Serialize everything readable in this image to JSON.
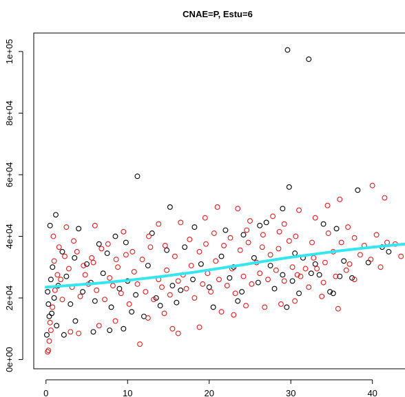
{
  "chart_data": {
    "type": "scatter",
    "title": "CNAE=P, Estu=6",
    "xlabel": "",
    "ylabel": "",
    "xlim": [
      -1.5,
      44.5
    ],
    "ylim": [
      -3000,
      106000
    ],
    "x_ticks": [
      0,
      10,
      20,
      30,
      40
    ],
    "x_tick_labels": [
      "0",
      "10",
      "20",
      "30",
      "40"
    ],
    "y_ticks": [
      0,
      20000,
      40000,
      60000,
      80000,
      100000
    ],
    "y_tick_labels": [
      "0e+00",
      "2e+04",
      "4e+04",
      "6e+04",
      "8e+04",
      "1e+05"
    ],
    "grid": false,
    "colors": {
      "group_a": "#000000",
      "group_b": "#e31a1c",
      "smooth": "#33e6f0"
    },
    "series": [
      {
        "marker": "open-circle",
        "color": "#000000",
        "points": [
          [
            29.6,
            100500
          ],
          [
            32.2,
            97500
          ],
          [
            11.2,
            59500
          ],
          [
            29.8,
            56000
          ],
          [
            15.2,
            49500
          ],
          [
            0.5,
            43500
          ],
          [
            1.2,
            47000
          ],
          [
            38.2,
            55000
          ],
          [
            26.2,
            43500
          ],
          [
            27.0,
            44500
          ],
          [
            29.0,
            49000
          ],
          [
            34.0,
            44000
          ],
          [
            35.6,
            42500
          ],
          [
            4.0,
            42500
          ],
          [
            6.5,
            37500
          ],
          [
            8.5,
            40000
          ],
          [
            9.8,
            38000
          ],
          [
            13.0,
            41000
          ],
          [
            17.0,
            36500
          ],
          [
            18.2,
            43000
          ],
          [
            22.0,
            42000
          ],
          [
            24.2,
            40500
          ],
          [
            2.0,
            35000
          ],
          [
            3.5,
            33000
          ],
          [
            5.0,
            31000
          ],
          [
            7.5,
            34500
          ],
          [
            12.5,
            30500
          ],
          [
            14.8,
            35500
          ],
          [
            19.0,
            31000
          ],
          [
            21.5,
            33500
          ],
          [
            23.0,
            30000
          ],
          [
            25.5,
            33000
          ],
          [
            27.5,
            30500
          ],
          [
            30.5,
            34500
          ],
          [
            31.5,
            33000
          ],
          [
            33.0,
            31000
          ],
          [
            36.5,
            32000
          ],
          [
            39.5,
            31500
          ],
          [
            41.2,
            36500
          ],
          [
            42.0,
            35000
          ],
          [
            0.2,
            22000
          ],
          [
            0.3,
            18000
          ],
          [
            0.4,
            14000
          ],
          [
            0.6,
            26000
          ],
          [
            0.8,
            30000
          ],
          [
            1.0,
            20000
          ],
          [
            1.5,
            24000
          ],
          [
            2.5,
            27000
          ],
          [
            3.0,
            18000
          ],
          [
            4.5,
            22000
          ],
          [
            5.5,
            25000
          ],
          [
            6.0,
            19000
          ],
          [
            7.0,
            28000
          ],
          [
            8.0,
            17000
          ],
          [
            9.0,
            23000
          ],
          [
            10.0,
            25500
          ],
          [
            11.0,
            21000
          ],
          [
            13.5,
            20000
          ],
          [
            15.5,
            24000
          ],
          [
            16.5,
            22500
          ],
          [
            18.0,
            26000
          ],
          [
            20.0,
            23500
          ],
          [
            22.5,
            26500
          ],
          [
            24.0,
            22000
          ],
          [
            26.0,
            25000
          ],
          [
            28.0,
            23000
          ],
          [
            29.5,
            17000
          ],
          [
            30.2,
            25500
          ],
          [
            31.0,
            21500
          ],
          [
            33.5,
            27500
          ],
          [
            34.8,
            22000
          ],
          [
            36.0,
            27000
          ],
          [
            37.5,
            26500
          ],
          [
            35.2,
            21500
          ],
          [
            5.8,
            9000
          ],
          [
            7.8,
            9500
          ],
          [
            9.5,
            10000
          ],
          [
            1.3,
            11000
          ],
          [
            2.2,
            8000
          ],
          [
            3.6,
            12500
          ],
          [
            10.5,
            15500
          ],
          [
            12.0,
            14000
          ],
          [
            14.0,
            17500
          ],
          [
            16.0,
            18500
          ],
          [
            20.5,
            17000
          ],
          [
            23.5,
            19000
          ],
          [
            29.0,
            27500
          ],
          [
            32.5,
            28000
          ],
          [
            0.1,
            8000
          ],
          [
            0.7,
            15000
          ]
        ]
      },
      {
        "marker": "open-circle",
        "color": "#e31a1c",
        "points": [
          [
            40.0,
            56500
          ],
          [
            41.5,
            52500
          ],
          [
            36.0,
            52000
          ],
          [
            34.5,
            50000
          ],
          [
            21.0,
            49500
          ],
          [
            23.5,
            49000
          ],
          [
            27.8,
            46500
          ],
          [
            33.0,
            46000
          ],
          [
            31.0,
            48500
          ],
          [
            19.5,
            46000
          ],
          [
            2.5,
            43000
          ],
          [
            6.0,
            43500
          ],
          [
            9.5,
            41500
          ],
          [
            13.8,
            44000
          ],
          [
            16.5,
            44500
          ],
          [
            25.0,
            45000
          ],
          [
            29.2,
            44000
          ],
          [
            37.0,
            43000
          ],
          [
            40.5,
            40500
          ],
          [
            43.5,
            33500
          ],
          [
            41.8,
            38000
          ],
          [
            39.0,
            37000
          ],
          [
            38.5,
            34000
          ],
          [
            37.2,
            31000
          ],
          [
            36.8,
            29000
          ],
          [
            35.5,
            27000
          ],
          [
            34.0,
            25000
          ],
          [
            32.8,
            33000
          ],
          [
            31.8,
            29500
          ],
          [
            30.8,
            27500
          ],
          [
            29.8,
            38500
          ],
          [
            28.5,
            36000
          ],
          [
            27.5,
            34000
          ],
          [
            26.5,
            36500
          ],
          [
            25.8,
            31500
          ],
          [
            24.8,
            38000
          ],
          [
            23.8,
            35500
          ],
          [
            22.8,
            29500
          ],
          [
            21.8,
            37000
          ],
          [
            20.8,
            32000
          ],
          [
            19.8,
            28000
          ],
          [
            18.8,
            35000
          ],
          [
            17.8,
            30500
          ],
          [
            16.8,
            27500
          ],
          [
            15.8,
            33500
          ],
          [
            14.8,
            29000
          ],
          [
            13.8,
            26000
          ],
          [
            12.8,
            36500
          ],
          [
            11.8,
            32500
          ],
          [
            10.8,
            28500
          ],
          [
            9.8,
            34000
          ],
          [
            8.8,
            30000
          ],
          [
            7.8,
            26500
          ],
          [
            6.8,
            36000
          ],
          [
            5.8,
            31500
          ],
          [
            4.8,
            27500
          ],
          [
            3.8,
            35000
          ],
          [
            2.8,
            29500
          ],
          [
            1.8,
            26000
          ],
          [
            1.0,
            32000
          ],
          [
            0.5,
            12000
          ],
          [
            0.4,
            6000
          ],
          [
            0.3,
            3000
          ],
          [
            0.2,
            2500
          ],
          [
            0.6,
            9500
          ],
          [
            0.8,
            17000
          ],
          [
            1.1,
            22500
          ],
          [
            1.4,
            27500
          ],
          [
            2.0,
            19500
          ],
          [
            3.2,
            23500
          ],
          [
            4.2,
            20500
          ],
          [
            5.2,
            24500
          ],
          [
            6.2,
            22500
          ],
          [
            7.2,
            19500
          ],
          [
            8.2,
            24000
          ],
          [
            9.2,
            21500
          ],
          [
            10.2,
            18000
          ],
          [
            11.2,
            24500
          ],
          [
            12.2,
            22000
          ],
          [
            13.2,
            19500
          ],
          [
            14.2,
            23500
          ],
          [
            15.2,
            21000
          ],
          [
            16.2,
            25500
          ],
          [
            17.2,
            23000
          ],
          [
            18.2,
            20000
          ],
          [
            19.2,
            24500
          ],
          [
            20.2,
            22000
          ],
          [
            21.2,
            26000
          ],
          [
            22.2,
            24000
          ],
          [
            23.2,
            21500
          ],
          [
            24.2,
            27000
          ],
          [
            25.2,
            24500
          ],
          [
            26.2,
            28000
          ],
          [
            27.2,
            26000
          ],
          [
            28.2,
            29000
          ],
          [
            29.2,
            25500
          ],
          [
            30.2,
            30000
          ],
          [
            31.2,
            27000
          ],
          [
            32.2,
            23500
          ],
          [
            33.2,
            29500
          ],
          [
            34.2,
            31500
          ],
          [
            35.2,
            35000
          ],
          [
            36.2,
            38000
          ],
          [
            37.8,
            39500
          ],
          [
            39.8,
            32500
          ],
          [
            41.0,
            30000
          ],
          [
            42.8,
            37500
          ],
          [
            3.0,
            9000
          ],
          [
            4.0,
            8500
          ],
          [
            6.5,
            11000
          ],
          [
            8.5,
            12500
          ],
          [
            11.5,
            5000
          ],
          [
            12.5,
            13500
          ],
          [
            14.5,
            15000
          ],
          [
            15.5,
            10000
          ],
          [
            16.2,
            8500
          ],
          [
            18.8,
            10500
          ],
          [
            21.5,
            15500
          ],
          [
            23.0,
            14500
          ],
          [
            24.5,
            17500
          ],
          [
            26.8,
            17000
          ],
          [
            28.8,
            18000
          ],
          [
            30.5,
            19000
          ],
          [
            33.8,
            20500
          ],
          [
            35.8,
            16500
          ],
          [
            37.8,
            26000
          ],
          [
            0.9,
            40000
          ],
          [
            1.6,
            36500
          ],
          [
            2.3,
            33500
          ],
          [
            3.4,
            38500
          ],
          [
            4.6,
            30500
          ],
          [
            5.6,
            33000
          ],
          [
            7.6,
            37500
          ],
          [
            8.6,
            32500
          ],
          [
            10.6,
            35000
          ],
          [
            12.6,
            40000
          ],
          [
            14.6,
            37000
          ],
          [
            17.6,
            39000
          ],
          [
            19.6,
            37500
          ],
          [
            20.6,
            41000
          ],
          [
            22.6,
            39500
          ],
          [
            24.6,
            42000
          ],
          [
            26.6,
            40500
          ],
          [
            28.6,
            41500
          ],
          [
            30.6,
            40000
          ],
          [
            32.6,
            38000
          ],
          [
            34.6,
            41000
          ]
        ]
      },
      {
        "type": "line",
        "color": "#33e6f0",
        "x": [
          0,
          2,
          4,
          6,
          8,
          10,
          12,
          14,
          16,
          18,
          20,
          22,
          24,
          26,
          28,
          30,
          32,
          34,
          36,
          38,
          40,
          42,
          44
        ],
        "values": [
          23500,
          23900,
          24300,
          24700,
          25200,
          25700,
          26300,
          26900,
          27600,
          28300,
          29100,
          29900,
          30700,
          31600,
          32400,
          33200,
          33900,
          34600,
          35300,
          35900,
          36500,
          37000,
          37500
        ]
      }
    ]
  }
}
